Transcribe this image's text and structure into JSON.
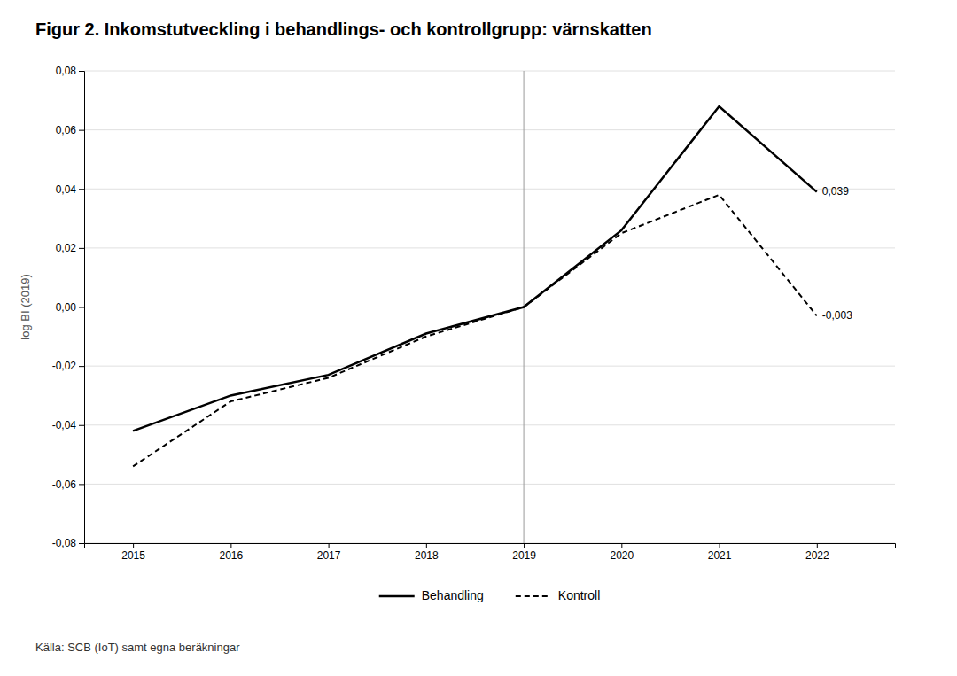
{
  "chart_data": {
    "type": "line",
    "title": "Figur 2. Inkomstutveckling i behandlings- och kontrollgrupp: värnskatten",
    "y_label": "log BI (2019)",
    "caption": "Källa: SCB (IoT) samt egna beräkningar",
    "x": [
      2015,
      2016,
      2017,
      2018,
      2019,
      2020,
      2021,
      2022
    ],
    "series": [
      {
        "name": "Behandling",
        "color": "#000000",
        "line_style": "solid",
        "values": [
          -0.042,
          -0.03,
          -0.023,
          -0.009,
          0.0,
          0.026,
          0.068,
          0.039
        ]
      },
      {
        "name": "Kontroll",
        "color": "#000000",
        "line_style": "dashed",
        "values": [
          -0.054,
          -0.032,
          -0.024,
          -0.01,
          0.0,
          0.025,
          0.038,
          -0.003
        ]
      }
    ],
    "xlim": [
      2014.5,
      2022.8
    ],
    "xticks": [
      2015,
      2016,
      2017,
      2018,
      2019,
      2020,
      2021,
      2022
    ],
    "ylim": [
      -0.08,
      0.08
    ],
    "yticks": [
      {
        "value": -0.08,
        "label": "-0,08"
      },
      {
        "value": -0.06,
        "label": "-0,06"
      },
      {
        "value": -0.04,
        "label": "-0,04"
      },
      {
        "value": -0.02,
        "label": "-0,02"
      },
      {
        "value": 0.0,
        "label": "0,00"
      },
      {
        "value": 0.02,
        "label": "0,02"
      },
      {
        "value": 0.04,
        "label": "0,04"
      },
      {
        "value": 0.06,
        "label": "0,06"
      },
      {
        "value": 0.08,
        "label": "0,08"
      }
    ],
    "vline": 2019,
    "annotations": [
      {
        "text": "0,039",
        "x": 2022,
        "y": 0.039
      },
      {
        "text": "-0,003",
        "x": 2022,
        "y": -0.003
      }
    ],
    "grid": true,
    "legend": "bottom"
  }
}
